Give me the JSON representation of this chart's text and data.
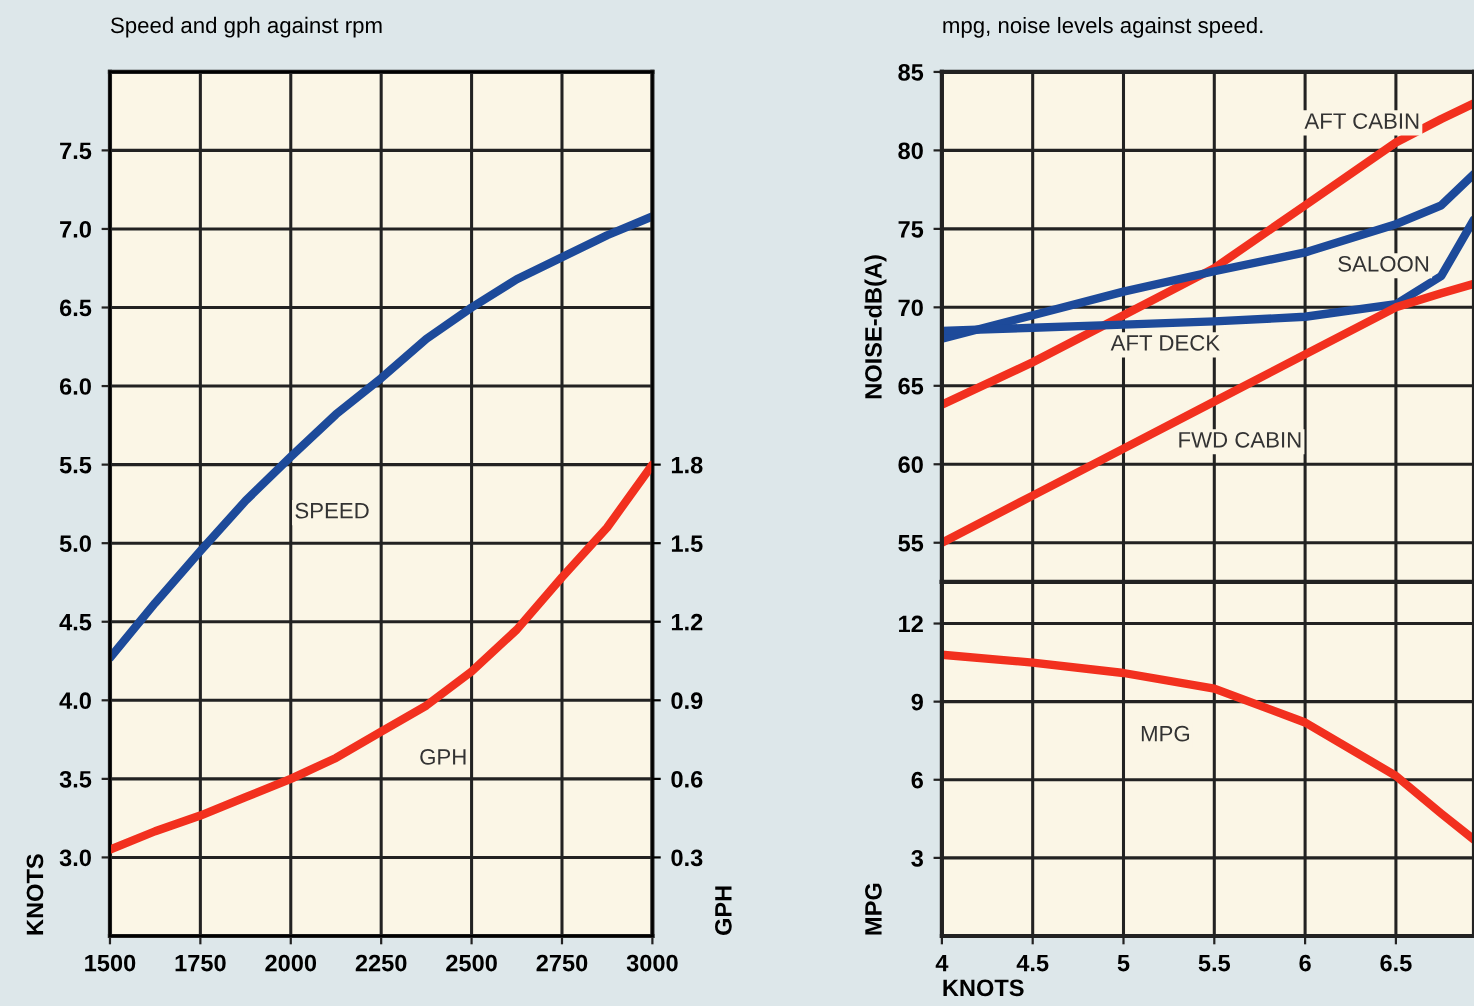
{
  "chart_data": [
    {
      "type": "line",
      "title": "Speed and gph against rpm",
      "ylabel": "KNOTS",
      "y2label": "GPH",
      "x": [
        1500,
        1625,
        1750,
        1875,
        2000,
        2125,
        2250,
        2375,
        2500,
        2625,
        2750,
        2875,
        3000
      ],
      "series": [
        {
          "name": "SPEED",
          "color": "#1d4a9a",
          "values": [
            4.27,
            4.62,
            4.95,
            5.27,
            5.55,
            5.82,
            6.05,
            6.3,
            6.5,
            6.68,
            6.82,
            6.96,
            7.08
          ]
        },
        {
          "name": "GPH",
          "color": "#f2301e",
          "axis": "y2",
          "values": [
            0.33,
            0.4,
            0.46,
            0.53,
            0.6,
            0.68,
            0.78,
            0.88,
            1.01,
            1.17,
            1.37,
            1.56,
            1.8
          ]
        }
      ],
      "xlim": [
        1500,
        3000
      ],
      "xticks": [
        1500,
        1750,
        2000,
        2250,
        2500,
        2750,
        3000
      ],
      "ylim": [
        2.5,
        8.0
      ],
      "yticks": [
        {
          "value": 3,
          "label": "3.0"
        },
        3.5,
        {
          "value": 4,
          "label": "4.0"
        },
        4.5,
        {
          "value": 5,
          "label": "5.0"
        },
        5.5,
        {
          "value": 6,
          "label": "6.0"
        },
        6.5,
        {
          "value": 7,
          "label": "7.0"
        },
        7.5
      ],
      "y2lim": [
        0,
        3.3
      ],
      "y2ticks": [
        0.3,
        0.6,
        0.9,
        1.2,
        1.5,
        1.8
      ],
      "grid": true,
      "legend": false,
      "marker": "none",
      "line_style": "solid"
    },
    {
      "type": "line",
      "title": "mpg, noise levels against speed.",
      "ylabel": "NOISE-dB(A)",
      "x": [
        4,
        4.5,
        5,
        5.5,
        6,
        6.5,
        6.75,
        6.93
      ],
      "series": [
        {
          "name": "AFT CABIN",
          "color": "#f2301e",
          "values": [
            63.8,
            66.5,
            69.5,
            72.5,
            76.5,
            80.5,
            82,
            83
          ]
        },
        {
          "name": "SALOON",
          "color": "#1d4a9a",
          "values": [
            68,
            69.5,
            71,
            72.3,
            73.5,
            75.3,
            76.5,
            78.5
          ]
        },
        {
          "name": "AFT DECK",
          "color": "#1d4a9a",
          "values": [
            68.5,
            68.7,
            68.9,
            69.1,
            69.4,
            70.2,
            72,
            75.6
          ]
        },
        {
          "name": "FWD CABIN",
          "color": "#f2301e",
          "values": [
            55,
            58,
            61,
            64,
            67,
            70,
            70.9,
            71.5
          ]
        }
      ],
      "xlim": [
        4,
        6.93
      ],
      "xticks": [
        4,
        4.5,
        5,
        5.5,
        6,
        6.5
      ],
      "ylim": [
        52.5,
        85
      ],
      "yticks": [
        55,
        60,
        65,
        70,
        75,
        80,
        85
      ],
      "tick_labels": "y",
      "grid": true,
      "legend": false,
      "marker": "none",
      "line_style": "solid"
    },
    {
      "type": "line",
      "xlabel": "KNOTS",
      "ylabel": "MPG",
      "x": [
        4,
        4.5,
        5,
        5.5,
        6,
        6.5,
        6.75,
        6.93
      ],
      "series": [
        {
          "name": "MPG",
          "color": "#f2301e",
          "values": [
            10.8,
            10.5,
            10.1,
            9.5,
            8.2,
            6.15,
            4.7,
            3.7
          ]
        }
      ],
      "xlim": [
        4,
        6.93
      ],
      "xticks": [
        4,
        4.5,
        5,
        5.5,
        6,
        6.5
      ],
      "ylim": [
        0,
        13.6
      ],
      "yticks": [
        3,
        6,
        9,
        12
      ],
      "grid": true,
      "legend": false,
      "marker": "none",
      "line_style": "solid"
    }
  ]
}
